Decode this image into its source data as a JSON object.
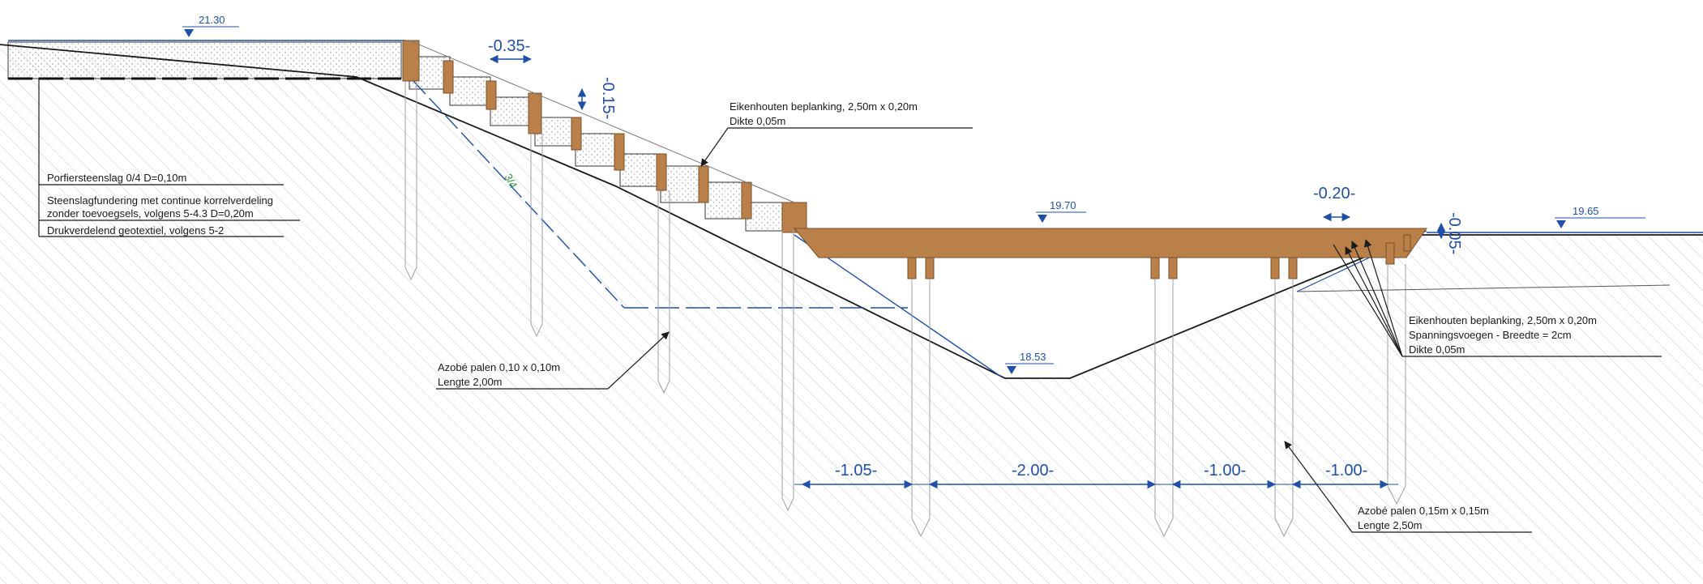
{
  "colors": {
    "wood": "#b9804a",
    "wood_dark": "#7a4f26",
    "dim_blue": "#1f4fa8",
    "ground_hatch": "#bcc4cf",
    "line": "#1a1a1a",
    "pile": "#9aa0a6"
  },
  "elevations": {
    "left_top": "21.30",
    "deck": "19.70",
    "right": "19.65",
    "bottom": "18.53"
  },
  "dimensions": {
    "step_width": "-0.35-",
    "step_height": "-0.15-",
    "deck_board": "-0.20-",
    "deck_thickness": "-0.05-",
    "span_1": "-1.05-",
    "span_2": "-2.00-",
    "span_3": "-1.00-",
    "span_4": "-1.00-"
  },
  "slope_label": "3/4",
  "annotations": {
    "left_layers": [
      "Porfiersteenslag 0/4 D=0,10m",
      "Steenslagfundering met continue korrelverdeling",
      "zonder toevoegsels, volgens 5-4.3 D=0,20m",
      "Drukverdelend geotextiel, volgens 5-2"
    ],
    "stair_planks": [
      "Eikenhouten beplanking, 2,50m x 0,20m",
      "Dikte 0,05m"
    ],
    "small_piles": [
      "Azobé palen 0,10 x 0,10m",
      "Lengte 2,00m"
    ],
    "deck_planks": [
      "Eikenhouten beplanking, 2,50m x 0,20m",
      "Spanningsvoegen - Breedte = 2cm",
      "Dikte 0,05m"
    ],
    "large_piles": [
      "Azobé palen 0,15m x 0,15m",
      "Lengte 2,50m"
    ]
  }
}
